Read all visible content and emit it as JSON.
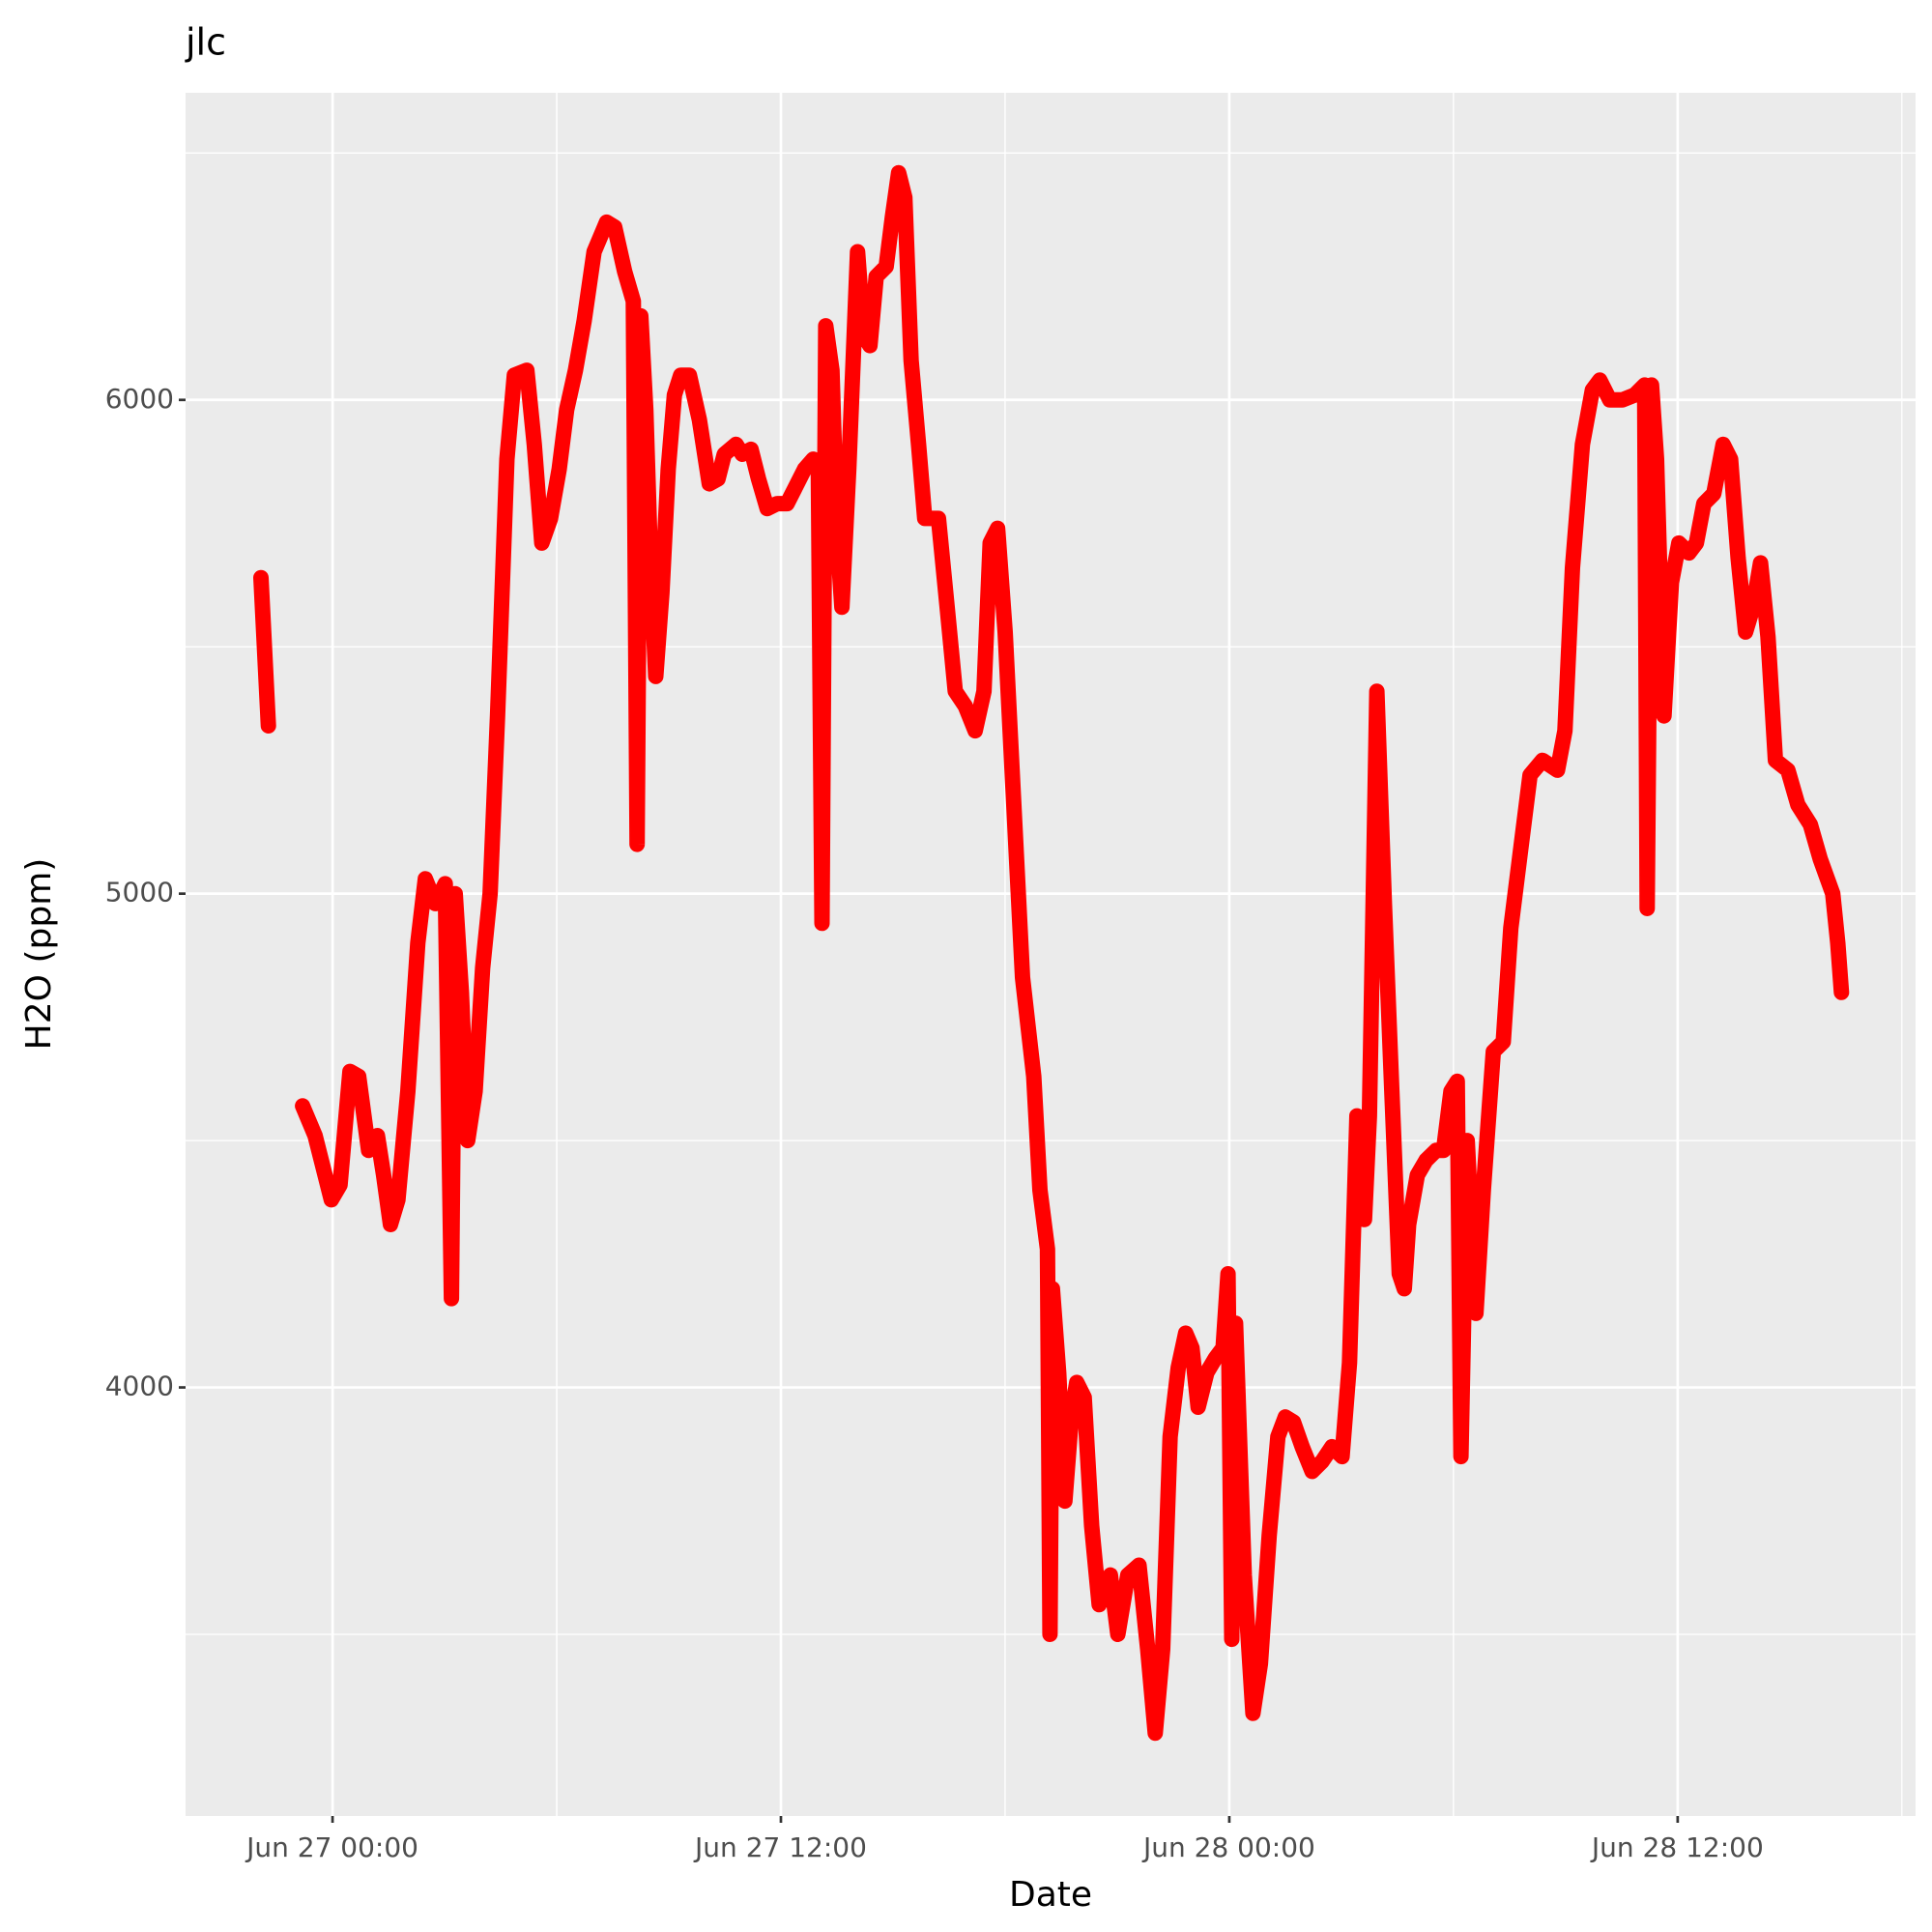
{
  "chart_data": {
    "type": "line",
    "title": "jlc",
    "x_label": "Date",
    "y_label": "H2O (ppm)",
    "color": "#ff0000",
    "grid": true,
    "xlim": [
      "Jun 26 20:04",
      "Jun 28 18:22"
    ],
    "xticks": [
      "Jun 27 00:00",
      "Jun 27 12:00",
      "Jun 28 00:00",
      "Jun 28 12:00"
    ],
    "ylim": [
      3132,
      6622
    ],
    "yticks": [
      4000,
      5000,
      6000
    ],
    "x": [
      "Jun 26 22:05",
      "Jun 26 22:17",
      null,
      "Jun 26 23:12",
      "Jun 26 23:32",
      "Jun 26 23:58",
      "Jun 27 00:12",
      "Jun 27 00:28",
      "Jun 27 00:42",
      "Jun 27 00:58",
      "Jun 27 01:12",
      "Jun 27 01:22",
      "Jun 27 01:33",
      "Jun 27 01:45",
      "Jun 27 02:01",
      "Jun 27 02:17",
      "Jun 27 02:29",
      "Jun 27 02:45",
      "Jun 27 03:01",
      "Jun 27 03:11",
      "Jun 27 03:17",
      "Jun 27 03:27",
      "Jun 27 03:37",
      "Jun 27 03:49",
      "Jun 27 04:01",
      "Jun 27 04:13",
      "Jun 27 04:25",
      "Jun 27 04:40",
      "Jun 27 04:52",
      "Jun 27 05:12",
      "Jun 27 05:24",
      "Jun 27 05:36",
      "Jun 27 05:50",
      "Jun 27 06:04",
      "Jun 27 06:16",
      "Jun 27 06:30",
      "Jun 27 06:44",
      "Jun 27 07:00",
      "Jun 27 07:20",
      "Jun 27 07:33",
      "Jun 27 07:49",
      "Jun 27 08:03",
      "Jun 27 08:09",
      "Jun 27 08:15",
      "Jun 27 08:23",
      "Jun 27 08:31",
      "Jun 27 08:39",
      "Jun 27 08:49",
      "Jun 27 08:59",
      "Jun 27 09:09",
      "Jun 27 09:19",
      "Jun 27 09:33",
      "Jun 27 09:49",
      "Jun 27 10:05",
      "Jun 27 10:19",
      "Jun 27 10:29",
      "Jun 27 10:48",
      "Jun 27 10:58",
      "Jun 27 11:12",
      "Jun 27 11:24",
      "Jun 27 11:38",
      "Jun 27 11:54",
      "Jun 27 12:10",
      "Jun 27 12:22",
      "Jun 27 12:38",
      "Jun 27 12:52",
      "Jun 27 13:00",
      "Jun 27 13:06",
      "Jun 27 13:12",
      "Jun 27 13:22",
      "Jun 27 13:30",
      "Jun 27 13:38",
      "Jun 27 13:49",
      "Jun 27 14:03",
      "Jun 27 14:13",
      "Jun 27 14:23",
      "Jun 27 14:33",
      "Jun 27 14:49",
      "Jun 27 14:59",
      "Jun 27 15:09",
      "Jun 27 15:19",
      "Jun 27 15:29",
      "Jun 27 15:41",
      "Jun 27 15:51",
      "Jun 27 16:13",
      "Jun 27 16:27",
      "Jun 27 16:40",
      "Jun 27 16:56",
      "Jun 27 17:12",
      "Jun 27 17:26",
      "Jun 27 17:36",
      "Jun 27 17:48",
      "Jun 27 18:00",
      "Jun 27 18:12",
      "Jun 27 18:28",
      "Jun 27 18:46",
      "Jun 27 18:56",
      "Jun 27 19:08",
      "Jun 27 19:12",
      "Jun 27 19:16",
      "Jun 27 19:26",
      "Jun 27 19:36",
      "Jun 27 19:47",
      "Jun 27 19:55",
      "Jun 27 20:07",
      "Jun 27 20:19",
      "Jun 27 20:31",
      "Jun 27 20:49",
      "Jun 27 21:01",
      "Jun 27 21:17",
      "Jun 27 21:35",
      "Jun 27 21:49",
      "Jun 27 22:01",
      "Jun 27 22:13",
      "Jun 27 22:25",
      "Jun 27 22:38",
      "Jun 27 22:50",
      "Jun 27 23:00",
      "Jun 27 23:10",
      "Jun 27 23:24",
      "Jun 27 23:38",
      "Jun 27 23:50",
      "Jun 27 23:58",
      "Jun 28 00:04",
      "Jun 28 00:10",
      "Jun 28 00:24",
      "Jun 28 00:38",
      "Jun 28 00:50",
      "Jun 28 01:04",
      "Jun 28 01:18",
      "Jun 28 01:30",
      "Jun 28 01:43",
      "Jun 28 01:57",
      "Jun 28 02:13",
      "Jun 28 02:29",
      "Jun 28 02:45",
      "Jun 28 03:01",
      "Jun 28 03:13",
      "Jun 28 03:25",
      "Jun 28 03:37",
      "Jun 28 03:45",
      "Jun 28 03:57",
      "Jun 28 04:09",
      "Jun 28 04:21",
      "Jun 28 04:33",
      "Jun 28 04:41",
      "Jun 28 04:48",
      "Jun 28 05:02",
      "Jun 28 05:16",
      "Jun 28 05:32",
      "Jun 28 05:44",
      "Jun 28 05:56",
      "Jun 28 06:06",
      "Jun 28 06:12",
      "Jun 28 06:22",
      "Jun 28 06:36",
      "Jun 28 06:48",
      "Jun 28 07:04",
      "Jun 28 07:20",
      "Jun 28 07:32",
      "Jun 28 07:47",
      "Jun 28 08:03",
      "Jun 28 08:23",
      "Jun 28 08:47",
      "Jun 28 08:59",
      "Jun 28 09:11",
      "Jun 28 09:27",
      "Jun 28 09:43",
      "Jun 28 09:55",
      "Jun 28 10:11",
      "Jun 28 10:31",
      "Jun 28 10:51",
      "Jun 28 11:07",
      "Jun 28 11:11",
      "Jun 28 11:18",
      "Jun 28 11:26",
      "Jun 28 11:38",
      "Jun 28 11:50",
      "Jun 28 12:02",
      "Jun 28 12:18",
      "Jun 28 12:30",
      "Jun 28 12:42",
      "Jun 28 12:58",
      "Jun 28 13:13",
      "Jun 28 13:25",
      "Jun 28 13:37",
      "Jun 28 13:49",
      "Jun 28 14:01",
      "Jun 28 14:13",
      "Jun 28 14:25",
      "Jun 28 14:37",
      "Jun 28 14:57",
      "Jun 28 15:13",
      "Jun 28 15:33",
      "Jun 28 15:49",
      "Jun 28 16:09",
      "Jun 28 16:17",
      "Jun 28 16:23"
    ],
    "values": [
      5640,
      5340,
      null,
      4570,
      4510,
      4380,
      4410,
      4640,
      4630,
      4480,
      4510,
      4430,
      4330,
      4380,
      4600,
      4900,
      5030,
      4980,
      5020,
      4180,
      5000,
      4800,
      4500,
      4600,
      4850,
      5000,
      5360,
      5880,
      6050,
      6060,
      5910,
      5710,
      5760,
      5860,
      5980,
      6060,
      6160,
      6300,
      6360,
      6350,
      6260,
      6200,
      5100,
      6170,
      5980,
      5660,
      5440,
      5610,
      5860,
      6010,
      6050,
      6050,
      5960,
      5830,
      5840,
      5890,
      5910,
      5890,
      5900,
      5840,
      5780,
      5790,
      5790,
      5820,
      5860,
      5880,
      5860,
      4940,
      6150,
      6060,
      5730,
      5580,
      5860,
      6300,
      6130,
      6110,
      6250,
      6270,
      6370,
      6460,
      6410,
      6080,
      5910,
      5760,
      5760,
      5580,
      5410,
      5380,
      5330,
      5410,
      5710,
      5740,
      5530,
      5230,
      4830,
      4630,
      4400,
      4280,
      3500,
      4200,
      4030,
      3770,
      3950,
      4010,
      3980,
      3720,
      3560,
      3620,
      3500,
      3620,
      3640,
      3470,
      3300,
      3470,
      3900,
      4040,
      4110,
      4080,
      3960,
      4030,
      4060,
      4080,
      4230,
      3490,
      4130,
      3620,
      3340,
      3440,
      3700,
      3900,
      3940,
      3930,
      3880,
      3830,
      3850,
      3880,
      3860,
      4050,
      4550,
      4340,
      4550,
      5410,
      4980,
      4600,
      4230,
      4200,
      4330,
      4430,
      4460,
      4480,
      4480,
      4600,
      4620,
      3860,
      4500,
      4150,
      4400,
      4680,
      4700,
      4930,
      5080,
      5240,
      5270,
      5250,
      5330,
      5660,
      5910,
      6020,
      6040,
      6000,
      6000,
      6010,
      6030,
      4970,
      6030,
      5880,
      5360,
      5630,
      5710,
      5690,
      5710,
      5790,
      5810,
      5910,
      5880,
      5680,
      5530,
      5580,
      5670,
      5520,
      5270,
      5250,
      5180,
      5140,
      5070,
      5000,
      4900,
      4800
    ]
  }
}
